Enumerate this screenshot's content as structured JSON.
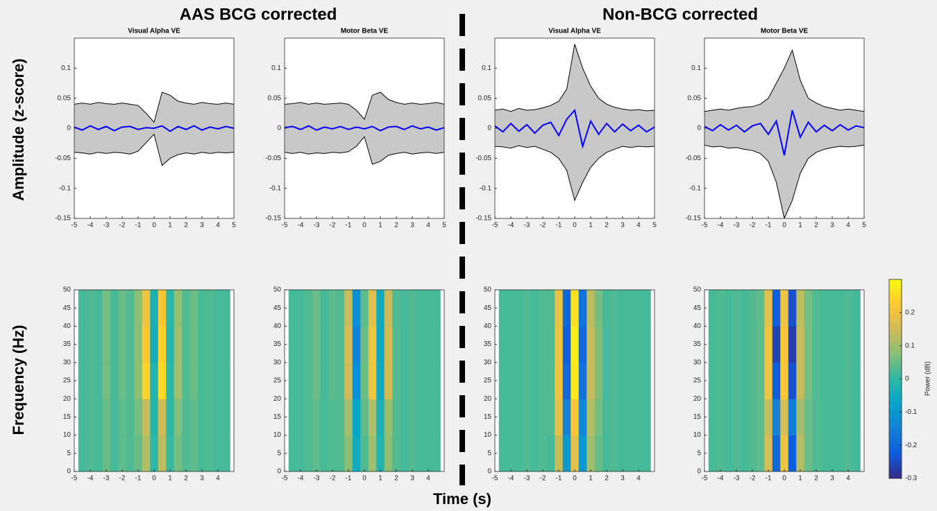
{
  "figure": {
    "left_heading": "AAS BCG corrected",
    "right_heading": "Non-BCG corrected",
    "xlabel": "Time (s)",
    "ylabel_top": "Amplitude (z-score)",
    "ylabel_bottom": "Frequency (Hz)",
    "colorbar": {
      "label": "Power (dB)",
      "colormap": "parula",
      "lim": [
        -0.3,
        0.3
      ],
      "ticks": [
        -0.3,
        -0.2,
        -0.1,
        0,
        0.1,
        0.2
      ]
    }
  },
  "chart_data": [
    {
      "type": "line",
      "title": "Visual Alpha VE",
      "band_fill": "#c8c8c8",
      "x": [
        -5,
        -4.5,
        -4,
        -3.5,
        -3,
        -2.5,
        -2,
        -1.5,
        -1,
        -0.5,
        0,
        0.5,
        1,
        1.5,
        2,
        2.5,
        3,
        3.5,
        4,
        4.5,
        5
      ],
      "series": [
        {
          "color": "#000000",
          "values": [
            0.04,
            0.042,
            0.04,
            0.043,
            0.041,
            0.04,
            0.042,
            0.04,
            0.038,
            0.025,
            0.01,
            0.06,
            0.055,
            0.045,
            0.042,
            0.04,
            0.043,
            0.041,
            0.04,
            0.042,
            0.04
          ]
        },
        {
          "color": "#000000",
          "values": [
            -0.04,
            -0.041,
            -0.043,
            -0.04,
            -0.042,
            -0.04,
            -0.041,
            -0.043,
            -0.038,
            -0.024,
            -0.01,
            -0.062,
            -0.05,
            -0.044,
            -0.041,
            -0.043,
            -0.04,
            -0.042,
            -0.04,
            -0.041,
            -0.04
          ]
        },
        {
          "color": "#0000ff",
          "values": [
            0.002,
            -0.003,
            0.004,
            -0.002,
            0.003,
            -0.004,
            0.002,
            0.003,
            -0.002,
            0.001,
            0,
            0.004,
            -0.005,
            0.003,
            -0.002,
            0.004,
            -0.003,
            0.002,
            -0.001,
            0.003,
            0
          ]
        }
      ],
      "xlim": [
        -5,
        5
      ],
      "xticks": [
        -5,
        -4,
        -3,
        -2,
        -1,
        0,
        1,
        2,
        3,
        4,
        5
      ],
      "ylim": [
        -0.15,
        0.15
      ],
      "yticks": [
        -0.15,
        -0.1,
        -0.05,
        0,
        0.05,
        0.1
      ]
    },
    {
      "type": "line",
      "title": "Motor Beta VE",
      "band_fill": "#c8c8c8",
      "x": [
        -5,
        -4.5,
        -4,
        -3.5,
        -3,
        -2.5,
        -2,
        -1.5,
        -1,
        -0.5,
        0,
        0.5,
        1,
        1.5,
        2,
        2.5,
        3,
        3.5,
        4,
        4.5,
        5
      ],
      "series": [
        {
          "color": "#000000",
          "values": [
            0.04,
            0.041,
            0.043,
            0.04,
            0.042,
            0.04,
            0.041,
            0.042,
            0.04,
            0.03,
            0.015,
            0.055,
            0.06,
            0.048,
            0.043,
            0.04,
            0.042,
            0.04,
            0.041,
            0.043,
            0.04
          ]
        },
        {
          "color": "#000000",
          "values": [
            -0.04,
            -0.042,
            -0.04,
            -0.043,
            -0.041,
            -0.042,
            -0.04,
            -0.041,
            -0.039,
            -0.03,
            -0.014,
            -0.06,
            -0.055,
            -0.045,
            -0.042,
            -0.04,
            -0.043,
            -0.041,
            -0.04,
            -0.042,
            -0.04
          ]
        },
        {
          "color": "#0000ff",
          "values": [
            0.001,
            0.003,
            -0.002,
            0.004,
            -0.003,
            0.002,
            -0.001,
            0.003,
            -0.002,
            0.002,
            -0.001,
            0.003,
            -0.004,
            0.002,
            0.003,
            -0.002,
            0.004,
            -0.001,
            0.002,
            -0.003,
            0.001
          ]
        }
      ],
      "xlim": [
        -5,
        5
      ],
      "xticks": [
        -5,
        -4,
        -3,
        -2,
        -1,
        0,
        1,
        2,
        3,
        4,
        5
      ],
      "ylim": [
        -0.15,
        0.15
      ],
      "yticks": [
        -0.15,
        -0.1,
        -0.05,
        0,
        0.05,
        0.1
      ]
    },
    {
      "type": "line",
      "title": "Visual Alpha VE",
      "band_fill": "#c8c8c8",
      "x": [
        -5,
        -4.5,
        -4,
        -3.5,
        -3,
        -2.5,
        -2,
        -1.5,
        -1,
        -0.5,
        0,
        0.5,
        1,
        1.5,
        2,
        2.5,
        3,
        3.5,
        4,
        4.5,
        5
      ],
      "series": [
        {
          "color": "#000000",
          "values": [
            0.03,
            0.032,
            0.028,
            0.033,
            0.03,
            0.031,
            0.034,
            0.038,
            0.045,
            0.065,
            0.14,
            0.1,
            0.07,
            0.05,
            0.04,
            0.035,
            0.032,
            0.03,
            0.031,
            0.029,
            0.03
          ]
        },
        {
          "color": "#000000",
          "values": [
            -0.03,
            -0.031,
            -0.033,
            -0.029,
            -0.032,
            -0.03,
            -0.035,
            -0.04,
            -0.05,
            -0.07,
            -0.12,
            -0.09,
            -0.065,
            -0.05,
            -0.04,
            -0.035,
            -0.03,
            -0.032,
            -0.03,
            -0.031,
            -0.03
          ]
        },
        {
          "color": "#0000ff",
          "values": [
            0.004,
            -0.006,
            0.008,
            -0.005,
            0.006,
            -0.008,
            0.005,
            0.01,
            -0.012,
            0.015,
            0.03,
            -0.03,
            0.012,
            -0.01,
            0.008,
            -0.006,
            0.007,
            -0.004,
            0.005,
            -0.006,
            0.002
          ]
        }
      ],
      "xlim": [
        -5,
        5
      ],
      "xticks": [
        -5,
        -4,
        -3,
        -2,
        -1,
        0,
        1,
        2,
        3,
        4,
        5
      ],
      "ylim": [
        -0.15,
        0.15
      ],
      "yticks": [
        -0.15,
        -0.1,
        -0.05,
        0,
        0.05,
        0.1
      ]
    },
    {
      "type": "line",
      "title": "Motor Beta VE",
      "band_fill": "#c8c8c8",
      "x": [
        -5,
        -4.5,
        -4,
        -3.5,
        -3,
        -2.5,
        -2,
        -1.5,
        -1,
        -0.5,
        0,
        0.5,
        1,
        1.5,
        2,
        2.5,
        3,
        3.5,
        4,
        4.5,
        5
      ],
      "series": [
        {
          "color": "#000000",
          "values": [
            0.028,
            0.03,
            0.032,
            0.03,
            0.033,
            0.035,
            0.036,
            0.04,
            0.05,
            0.075,
            0.1,
            0.13,
            0.08,
            0.05,
            0.042,
            0.036,
            0.033,
            0.03,
            0.032,
            0.03,
            0.028
          ]
        },
        {
          "color": "#000000",
          "values": [
            -0.028,
            -0.031,
            -0.03,
            -0.033,
            -0.032,
            -0.035,
            -0.037,
            -0.042,
            -0.055,
            -0.09,
            -0.15,
            -0.12,
            -0.075,
            -0.05,
            -0.04,
            -0.035,
            -0.032,
            -0.03,
            -0.031,
            -0.03,
            -0.028
          ]
        },
        {
          "color": "#0000ff",
          "values": [
            0.003,
            -0.004,
            0.006,
            -0.003,
            0.005,
            -0.006,
            0.004,
            0.008,
            -0.01,
            0.012,
            -0.045,
            0.03,
            -0.015,
            0.01,
            -0.006,
            0.005,
            -0.004,
            0.006,
            -0.003,
            0.004,
            0.001
          ]
        }
      ],
      "xlim": [
        -5,
        5
      ],
      "xticks": [
        -5,
        -4,
        -3,
        -2,
        -1,
        0,
        1,
        2,
        3,
        4,
        5
      ],
      "ylim": [
        -0.15,
        0.15
      ],
      "yticks": [
        -0.15,
        -0.1,
        -0.05,
        0,
        0.05,
        0.1
      ]
    },
    {
      "type": "heatmap",
      "x": [
        -4.5,
        -4,
        -3.5,
        -3,
        -2.5,
        -2,
        -1.5,
        -1,
        -0.5,
        0,
        0.5,
        1,
        1.5,
        2,
        2.5,
        3,
        3.5,
        4,
        4.5
      ],
      "y": [
        5,
        15,
        25,
        35,
        45
      ],
      "z": [
        [
          0.02,
          0.03,
          0.02,
          0.05,
          0.02,
          0.04,
          0.03,
          0.05,
          0.12,
          0.0,
          0.13,
          0.01,
          0.06,
          0.03,
          0.04,
          0.02,
          0.03,
          0.02,
          0.02
        ],
        [
          0.02,
          0.03,
          0.02,
          0.05,
          0.02,
          0.04,
          0.03,
          0.06,
          0.14,
          -0.01,
          0.15,
          0.0,
          0.07,
          0.03,
          0.04,
          0.02,
          0.03,
          0.02,
          0.02
        ],
        [
          0.02,
          0.03,
          0.02,
          0.06,
          0.02,
          0.05,
          0.03,
          0.08,
          0.24,
          -0.02,
          0.25,
          0.0,
          0.1,
          0.03,
          0.05,
          0.02,
          0.03,
          0.02,
          0.02
        ],
        [
          0.02,
          0.03,
          0.02,
          0.06,
          0.02,
          0.05,
          0.03,
          0.08,
          0.22,
          -0.04,
          0.24,
          -0.01,
          0.1,
          0.03,
          0.05,
          0.02,
          0.03,
          0.02,
          0.02
        ],
        [
          0.02,
          0.03,
          0.02,
          0.06,
          0.02,
          0.05,
          0.03,
          0.08,
          0.2,
          -0.03,
          0.22,
          0.0,
          0.09,
          0.03,
          0.05,
          0.02,
          0.03,
          0.02,
          0.02
        ]
      ],
      "xlim": [
        -5,
        5
      ],
      "xticks": [
        -5,
        -4,
        -3,
        -2,
        -1,
        0,
        1,
        2,
        3,
        4
      ],
      "ylim": [
        0,
        50
      ],
      "yticks": [
        0,
        5,
        10,
        15,
        20,
        25,
        30,
        35,
        40,
        45,
        50
      ]
    },
    {
      "type": "heatmap",
      "x": [
        -4.5,
        -4,
        -3.5,
        -3,
        -2.5,
        -2,
        -1.5,
        -1,
        -0.5,
        0,
        0.5,
        1,
        1.5,
        2,
        2.5,
        3,
        3.5,
        4,
        4.5
      ],
      "y": [
        5,
        15,
        25,
        35,
        45
      ],
      "z": [
        [
          0.02,
          0.02,
          0.03,
          0.04,
          0.02,
          0.03,
          0.03,
          0.08,
          -0.05,
          0.03,
          0.1,
          -0.02,
          0.08,
          0.03,
          0.02,
          0.03,
          0.02,
          0.02,
          0.02
        ],
        [
          0.02,
          0.02,
          0.03,
          0.04,
          0.02,
          0.03,
          0.03,
          0.1,
          -0.07,
          0.04,
          0.12,
          -0.03,
          0.09,
          0.03,
          0.02,
          0.03,
          0.02,
          0.02,
          0.02
        ],
        [
          0.02,
          0.02,
          0.03,
          0.05,
          0.02,
          0.04,
          0.03,
          0.15,
          -0.12,
          0.05,
          0.2,
          -0.05,
          0.15,
          0.03,
          0.02,
          0.03,
          0.02,
          0.02,
          0.02
        ],
        [
          0.02,
          0.02,
          0.03,
          0.05,
          0.02,
          0.04,
          0.03,
          0.16,
          -0.14,
          0.05,
          0.2,
          -0.06,
          0.15,
          0.03,
          0.02,
          0.03,
          0.02,
          0.02,
          0.02
        ],
        [
          0.02,
          0.02,
          0.03,
          0.05,
          0.02,
          0.04,
          0.03,
          0.14,
          -0.12,
          0.04,
          0.18,
          -0.05,
          0.14,
          0.03,
          0.02,
          0.03,
          0.02,
          0.02,
          0.02
        ]
      ],
      "xlim": [
        -5,
        5
      ],
      "xticks": [
        -5,
        -4,
        -3,
        -2,
        -1,
        0,
        1,
        2,
        3,
        4
      ],
      "ylim": [
        0,
        50
      ],
      "yticks": [
        0,
        5,
        10,
        15,
        20,
        25,
        30,
        35,
        40,
        45,
        50
      ]
    },
    {
      "type": "heatmap",
      "x": [
        -4.5,
        -4,
        -3.5,
        -3,
        -2.5,
        -2,
        -1.5,
        -1,
        -0.5,
        0,
        0.5,
        1,
        1.5,
        2,
        2.5,
        3,
        3.5,
        4,
        4.5
      ],
      "y": [
        5,
        15,
        25,
        35,
        45
      ],
      "z": [
        [
          0.02,
          0.02,
          0.02,
          0.03,
          0.02,
          0.03,
          0.02,
          0.14,
          -0.1,
          0.18,
          -0.1,
          0.1,
          0.05,
          0.02,
          0.03,
          0.02,
          0.02,
          0.02,
          0.02
        ],
        [
          0.02,
          0.02,
          0.02,
          0.03,
          0.02,
          0.03,
          0.03,
          0.18,
          -0.15,
          0.22,
          -0.14,
          0.12,
          0.06,
          0.02,
          0.03,
          0.02,
          0.02,
          0.02,
          0.02
        ],
        [
          0.02,
          0.02,
          0.02,
          0.03,
          0.02,
          0.03,
          0.03,
          0.2,
          -0.2,
          0.27,
          -0.18,
          0.14,
          0.07,
          0.02,
          0.03,
          0.02,
          0.02,
          0.02,
          0.02
        ],
        [
          0.02,
          0.02,
          0.02,
          0.03,
          0.02,
          0.03,
          0.03,
          0.2,
          -0.22,
          0.28,
          -0.2,
          0.14,
          0.07,
          0.02,
          0.03,
          0.02,
          0.02,
          0.02,
          0.02
        ],
        [
          0.02,
          0.02,
          0.02,
          0.03,
          0.02,
          0.03,
          0.03,
          0.19,
          -0.2,
          0.26,
          -0.18,
          0.13,
          0.06,
          0.02,
          0.03,
          0.02,
          0.02,
          0.02,
          0.02
        ]
      ],
      "xlim": [
        -5,
        5
      ],
      "xticks": [
        -5,
        -4,
        -3,
        -2,
        -1,
        0,
        1,
        2,
        3,
        4
      ],
      "ylim": [
        0,
        50
      ],
      "yticks": [
        0,
        5,
        10,
        15,
        20,
        25,
        30,
        35,
        40,
        45,
        50
      ]
    },
    {
      "type": "heatmap",
      "x": [
        -4.5,
        -4,
        -3.5,
        -3,
        -2.5,
        -2,
        -1.5,
        -1,
        -0.5,
        0,
        0.5,
        1,
        1.5,
        2,
        2.5,
        3,
        3.5,
        4,
        4.5
      ],
      "y": [
        5,
        15,
        25,
        35,
        45
      ],
      "z": [
        [
          0.02,
          0.03,
          0.02,
          0.03,
          0.02,
          0.03,
          0.04,
          0.16,
          -0.2,
          0.2,
          -0.22,
          0.12,
          0.05,
          0.03,
          0.02,
          0.02,
          0.02,
          0.03,
          0.02
        ],
        [
          0.02,
          0.03,
          0.02,
          0.03,
          0.02,
          0.03,
          0.04,
          0.14,
          -0.15,
          0.16,
          -0.16,
          0.1,
          0.05,
          0.03,
          0.02,
          0.02,
          0.02,
          0.03,
          0.02
        ],
        [
          0.02,
          0.03,
          0.02,
          0.03,
          0.02,
          0.03,
          0.04,
          0.2,
          -0.22,
          0.22,
          -0.24,
          0.14,
          0.06,
          0.03,
          0.02,
          0.02,
          0.02,
          0.03,
          0.02
        ],
        [
          0.02,
          0.03,
          0.02,
          0.03,
          0.02,
          0.03,
          0.04,
          0.2,
          -0.26,
          0.22,
          -0.27,
          0.14,
          0.06,
          0.03,
          0.02,
          0.02,
          0.02,
          0.03,
          0.02
        ],
        [
          0.02,
          0.03,
          0.02,
          0.03,
          0.02,
          0.03,
          0.04,
          0.18,
          -0.22,
          0.2,
          -0.24,
          0.13,
          0.06,
          0.03,
          0.02,
          0.02,
          0.02,
          0.03,
          0.02
        ]
      ],
      "xlim": [
        -5,
        5
      ],
      "xticks": [
        -5,
        -4,
        -3,
        -2,
        -1,
        0,
        1,
        2,
        3,
        4
      ],
      "ylim": [
        0,
        50
      ],
      "yticks": [
        0,
        5,
        10,
        15,
        20,
        25,
        30,
        35,
        40,
        45,
        50
      ]
    }
  ]
}
